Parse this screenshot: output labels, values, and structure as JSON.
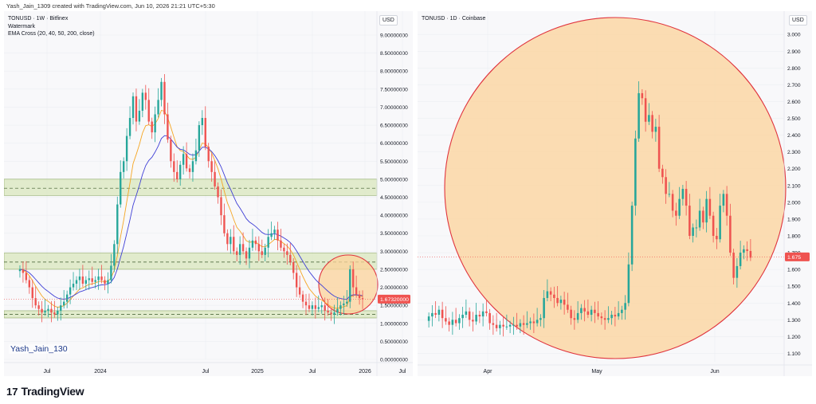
{
  "header": {
    "text": "Yash_Jain_1309 created with TradingView.com, Jun 10, 2026 21:21 UTC+5:30"
  },
  "footer": {
    "brand": "TradingView",
    "mark": "17"
  },
  "colors": {
    "up": "#26a69a",
    "down": "#ef5350",
    "ema_orange": "#f5a623",
    "ema_blue": "#3f3fd6",
    "zone_fill": "#dde9c3",
    "circle_fill": "#fcd39a",
    "circle_stroke": "#e0343e",
    "price_tag": "#ef5350"
  },
  "left": {
    "legend": [
      "TONUSD · 1W · Bitfinex",
      "Watermark",
      "EMA Cross (20, 40, 50, 200, close)"
    ],
    "currency": "USD",
    "watermark": "Yash_Jain_130",
    "last_price": "1.67320000"
  },
  "right": {
    "legend": [
      "TONUSD · 1D · Coinbase"
    ],
    "currency": "USD",
    "last_price": "1.675",
    "last_price_hidden": "1.700"
  },
  "chart_data": [
    {
      "type": "candlestick",
      "symbol": "TONUSD",
      "timeframe": "1W",
      "exchange": "Bitfinex",
      "yaxis_ticks": [
        "9.00000000",
        "8.50000000",
        "8.00000000",
        "7.50000000",
        "7.00000000",
        "6.50000000",
        "6.00000000",
        "5.50000000",
        "5.00000000",
        "4.50000000",
        "4.00000000",
        "3.50000000",
        "3.00000000",
        "2.50000000",
        "2.00000000",
        "1.50000000",
        "1.00000000",
        "0.50000000",
        "0.00000000"
      ],
      "ylim": [
        0,
        9
      ],
      "xaxis_ticks": [
        "Jul",
        "2024",
        "Jul",
        "2025",
        "Jul",
        "2026",
        "Jul"
      ],
      "zones": [
        [
          4.55,
          5.0
        ],
        [
          2.5,
          2.95
        ],
        [
          1.15,
          1.35
        ]
      ],
      "dashed_levels": [
        4.75,
        2.7,
        1.25
      ],
      "last_price": 1.6732,
      "close_series": [
        2.5,
        2.4,
        2.2,
        2.0,
        1.7,
        1.5,
        1.4,
        1.3,
        1.35,
        1.4,
        1.3,
        1.25,
        1.35,
        1.5,
        1.6,
        1.8,
        2.0,
        2.1,
        2.2,
        2.3,
        2.1,
        2.2,
        2.25,
        2.15,
        2.2,
        2.3,
        2.2,
        2.1,
        2.2,
        2.6,
        3.2,
        4.3,
        5.2,
        5.5,
        6.2,
        6.7,
        7.3,
        6.6,
        6.9,
        7.4,
        7.2,
        6.6,
        6.3,
        6.8,
        7.2,
        7.7,
        6.8,
        6.1,
        5.5,
        5.2,
        5.0,
        5.4,
        5.7,
        5.3,
        5.2,
        5.5,
        5.8,
        6.5,
        6.7,
        5.9,
        5.5,
        5.2,
        4.8,
        4.5,
        4.0,
        3.5,
        3.2,
        3.4,
        3.0,
        2.9,
        3.2,
        3.0,
        2.8,
        3.1,
        3.3,
        3.2,
        3.0,
        2.9,
        3.1,
        3.4,
        3.5,
        3.6,
        3.3,
        3.1,
        3.0,
        2.9,
        2.7,
        2.4,
        2.0,
        1.8,
        1.6,
        1.5,
        1.4,
        1.5,
        1.4,
        1.45,
        1.5,
        1.35,
        1.3,
        1.25,
        1.3,
        1.4,
        1.5,
        1.55,
        1.6,
        2.5,
        2.0,
        1.8,
        1.7,
        1.67
      ]
    },
    {
      "type": "candlestick",
      "symbol": "TONUSD",
      "timeframe": "1D",
      "exchange": "Coinbase",
      "yaxis_ticks": [
        "3.000",
        "2.900",
        "2.800",
        "2.700",
        "2.600",
        "2.500",
        "2.400",
        "2.300",
        "2.200",
        "2.100",
        "2.000",
        "1.900",
        "1.800",
        "1.700",
        "1.600",
        "1.500",
        "1.400",
        "1.300",
        "1.200",
        "1.100"
      ],
      "ylim": [
        1.05,
        3.02
      ],
      "xaxis_ticks": [
        "Apr",
        "May",
        "Jun"
      ],
      "last_price": 1.675,
      "close_series": [
        1.32,
        1.34,
        1.33,
        1.36,
        1.31,
        1.29,
        1.27,
        1.3,
        1.28,
        1.31,
        1.33,
        1.35,
        1.3,
        1.29,
        1.33,
        1.32,
        1.35,
        1.34,
        1.28,
        1.27,
        1.25,
        1.27,
        1.26,
        1.26,
        1.27,
        1.27,
        1.26,
        1.28,
        1.27,
        1.28,
        1.29,
        1.28,
        1.3,
        1.31,
        1.43,
        1.47,
        1.45,
        1.43,
        1.4,
        1.42,
        1.39,
        1.36,
        1.31,
        1.3,
        1.34,
        1.37,
        1.35,
        1.33,
        1.36,
        1.34,
        1.32,
        1.31,
        1.3,
        1.31,
        1.33,
        1.32,
        1.34,
        1.36,
        1.4,
        1.63,
        1.98,
        2.38,
        2.65,
        2.62,
        2.48,
        2.52,
        2.42,
        2.45,
        2.2,
        2.15,
        2.05,
        2.05,
        1.95,
        1.92,
        2.02,
        2.08,
        1.98,
        1.8,
        1.85,
        1.85,
        1.95,
        1.88,
        2.02,
        1.92,
        1.8,
        1.78,
        1.98,
        2.05,
        1.92,
        1.7,
        1.55,
        1.62,
        1.7,
        1.72,
        1.71,
        1.67
      ]
    }
  ]
}
